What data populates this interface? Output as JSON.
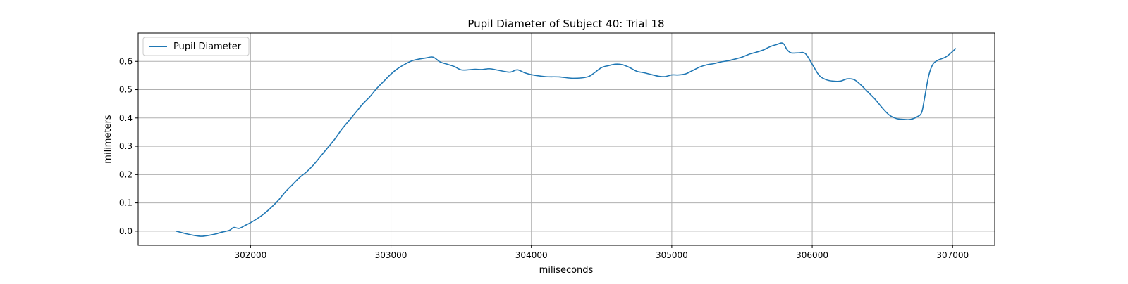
{
  "chart_data": {
    "type": "line",
    "title": "Pupil Diameter of Subject 40: Trial 18",
    "xlabel": "miliseconds",
    "ylabel": "milimeters",
    "xlim": [
      301200,
      307300
    ],
    "ylim": [
      -0.05,
      0.7
    ],
    "xticks": [
      302000,
      303000,
      304000,
      305000,
      306000,
      307000
    ],
    "yticks": [
      0.0,
      0.1,
      0.2,
      0.3,
      0.4,
      0.5,
      0.6
    ],
    "x_tick_labels": [
      "302000",
      "303000",
      "304000",
      "305000",
      "306000",
      "307000"
    ],
    "y_tick_labels": [
      "0.0",
      "0.1",
      "0.2",
      "0.3",
      "0.4",
      "0.5",
      "0.6"
    ],
    "grid": true,
    "legend_position": "top-left",
    "series": [
      {
        "name": "Pupil Diameter",
        "color": "#1f77b4",
        "x": [
          301470,
          301550,
          301600,
          301650,
          301700,
          301750,
          301800,
          301850,
          301880,
          301920,
          301960,
          302000,
          302050,
          302100,
          302150,
          302200,
          302250,
          302300,
          302350,
          302400,
          302450,
          302500,
          302550,
          302600,
          302650,
          302700,
          302750,
          302800,
          302850,
          302900,
          302950,
          303000,
          303050,
          303100,
          303150,
          303200,
          303250,
          303300,
          303350,
          303400,
          303450,
          303500,
          303550,
          303600,
          303650,
          303700,
          303750,
          303800,
          303850,
          303900,
          303950,
          304000,
          304100,
          304200,
          304300,
          304400,
          304450,
          304500,
          304550,
          304600,
          304650,
          304700,
          304750,
          304800,
          304850,
          304900,
          304950,
          305000,
          305050,
          305100,
          305150,
          305200,
          305250,
          305300,
          305350,
          305400,
          305450,
          305500,
          305550,
          305600,
          305650,
          305700,
          305750,
          305780,
          305800,
          305820,
          305850,
          305900,
          305950,
          306000,
          306050,
          306100,
          306150,
          306200,
          306250,
          306300,
          306350,
          306400,
          306450,
          306500,
          306550,
          306600,
          306650,
          306700,
          306750,
          306780,
          306800,
          306830,
          306860,
          306900,
          306950,
          307000,
          307020
        ],
        "y": [
          0.0,
          -0.01,
          -0.015,
          -0.018,
          -0.015,
          -0.01,
          -0.003,
          0.003,
          0.013,
          0.01,
          0.02,
          0.03,
          0.045,
          0.063,
          0.085,
          0.11,
          0.14,
          0.165,
          0.19,
          0.21,
          0.235,
          0.265,
          0.295,
          0.325,
          0.36,
          0.39,
          0.42,
          0.45,
          0.475,
          0.505,
          0.53,
          0.555,
          0.575,
          0.59,
          0.602,
          0.608,
          0.612,
          0.615,
          0.598,
          0.59,
          0.582,
          0.57,
          0.57,
          0.572,
          0.571,
          0.574,
          0.57,
          0.565,
          0.562,
          0.57,
          0.56,
          0.553,
          0.546,
          0.545,
          0.54,
          0.545,
          0.56,
          0.578,
          0.585,
          0.59,
          0.588,
          0.578,
          0.565,
          0.56,
          0.554,
          0.548,
          0.546,
          0.552,
          0.552,
          0.556,
          0.568,
          0.58,
          0.588,
          0.592,
          0.598,
          0.602,
          0.608,
          0.615,
          0.625,
          0.632,
          0.64,
          0.652,
          0.66,
          0.665,
          0.66,
          0.642,
          0.63,
          0.63,
          0.628,
          0.59,
          0.55,
          0.535,
          0.53,
          0.53,
          0.538,
          0.535,
          0.515,
          0.49,
          0.465,
          0.435,
          0.41,
          0.398,
          0.395,
          0.395,
          0.405,
          0.42,
          0.47,
          0.55,
          0.59,
          0.605,
          0.615,
          0.635,
          0.645
        ]
      }
    ]
  }
}
